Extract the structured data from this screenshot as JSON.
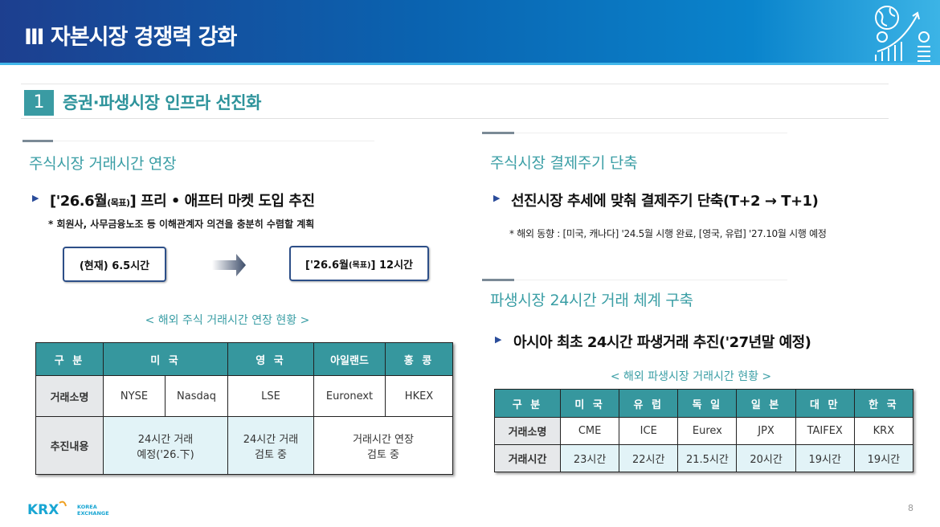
{
  "header": {
    "title": "Ⅲ  자본시장 경쟁력 강화",
    "icon": "globe-money-growth-icon"
  },
  "section": {
    "number": "1",
    "title": "증권·파생시장 인프라 선진화"
  },
  "left": {
    "subtitle": "주식시장 거래시간 연장",
    "bullet": {
      "prefix": "['26.6월",
      "small": "(목표)",
      "suffix": "]  프리 • 애프터 마켓 도입 추진"
    },
    "note": "* 회원사, 사무금융노조 등 이해관계자 의견을 충분히 수렴할 계획",
    "current_box": "(현재) 6.5시간",
    "target_box": {
      "prefix": "['26.6월",
      "small": "(목표)",
      "suffix": "] 12시간"
    },
    "caption": "< 해외 주식 거래시간 연장 현황 >",
    "table": {
      "headers": [
        "구 분",
        "미 국",
        "영 국",
        "아일랜드",
        "홍 콩"
      ],
      "row1": {
        "label": "거래소명",
        "cells": [
          "NYSE",
          "Nasdaq",
          "LSE",
          "Euronext",
          "HKEX"
        ]
      },
      "row2": {
        "label": "추진내용",
        "cells": [
          "24시간 거래\n예정('26.下)",
          "24시간 거래\n검토 중",
          "거래시간 연장\n검토 중"
        ]
      }
    }
  },
  "right": {
    "subtitle1": "주식시장 결제주기 단축",
    "bullet1": "선진시장 추세에 맞춰 결제주기 단축(T+2 → T+1)",
    "note1": "* 해외 동향 : [미국, 캐나다] '24.5월 시행 완료, [영국, 유럽] '27.10월 시행 예정",
    "subtitle2": "파생시장 24시간 거래 체계 구축",
    "bullet2": "아시아 최초 24시간 파생거래 추진('27년말 예정)",
    "caption": "< 해외 파생시장 거래시간 현황 >",
    "table": {
      "headers": [
        "구 분",
        "미 국",
        "유 럽",
        "독 일",
        "일 본",
        "대 만",
        "한 국"
      ],
      "row1": {
        "label": "거래소명",
        "cells": [
          "CME",
          "ICE",
          "Eurex",
          "JPX",
          "TAIFEX",
          "KRX"
        ]
      },
      "row2": {
        "label": "거래시간",
        "cells": [
          "23시간",
          "22시간",
          "21.5시간",
          "20시간",
          "19시간",
          "19시간"
        ]
      }
    }
  },
  "footer": {
    "logo": "KRX KOREA EXCHANGE",
    "page": "8"
  },
  "colors": {
    "teal": "#36979e",
    "navy": "#1d3f8f",
    "accent_blue": "#41b6ea"
  }
}
